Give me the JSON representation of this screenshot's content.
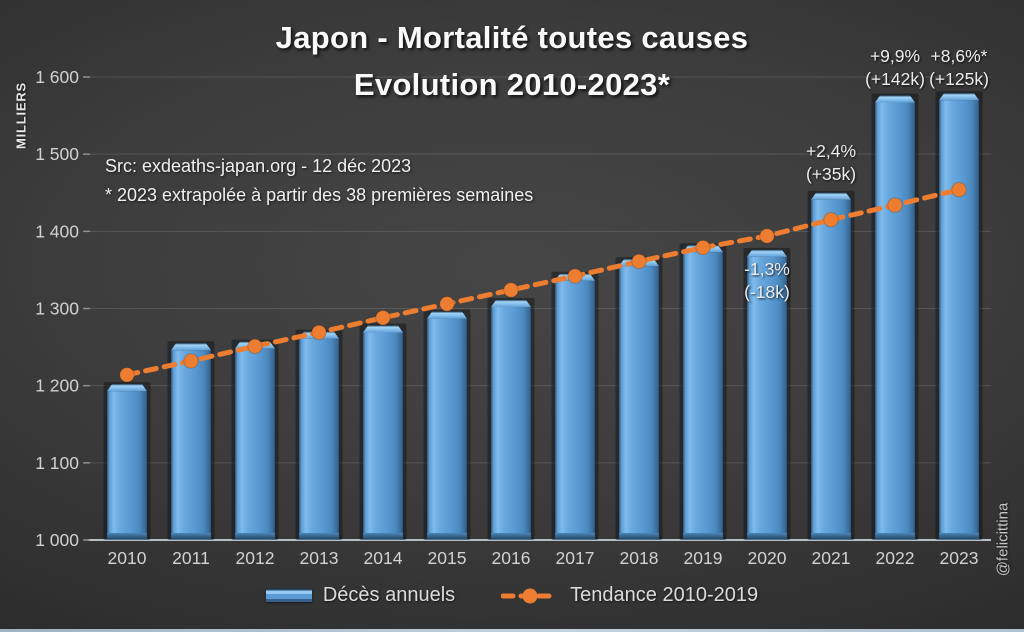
{
  "chart_data": {
    "type": "bar",
    "title_line1": "Japon - Mortalité toutes causes",
    "title_line2": "Evolution 2010-2023*",
    "unit_label": "MILLIERS",
    "source_line1": "Src: exdeaths-japan.org - 12 déc 2023",
    "source_line2": "* 2023 extrapolée à partir des 38 premières semaines",
    "watermark": "@felicittina",
    "categories": [
      "2010",
      "2011",
      "2012",
      "2013",
      "2014",
      "2015",
      "2016",
      "2017",
      "2018",
      "2019",
      "2020",
      "2021",
      "2022",
      "2023"
    ],
    "series": [
      {
        "name": "Décès annuels",
        "type": "bar",
        "color": "#5b9bd5",
        "values": [
          1202,
          1255,
          1257,
          1270,
          1278,
          1296,
          1311,
          1345,
          1364,
          1382,
          1376,
          1450,
          1576,
          1579
        ]
      },
      {
        "name": "Tendance 2010-2019",
        "type": "line-dashed",
        "color": "#ed7d31",
        "values": [
          1214,
          1232,
          1251,
          1269,
          1288,
          1306,
          1324,
          1342,
          1361,
          1379,
          1394,
          1415,
          1434,
          1454
        ]
      }
    ],
    "ylabel": "MILLIERS",
    "ylim": [
      1000,
      1600
    ],
    "ytick_step": 100,
    "ytick_labels": [
      "1 000",
      "1 100",
      "1 200",
      "1 300",
      "1 400",
      "1 500",
      "1 600"
    ],
    "grid": true,
    "legend_position": "bottom",
    "annotations": [
      {
        "year": "2020",
        "line1": "-1,3%",
        "line2": "(-18k)"
      },
      {
        "year": "2021",
        "line1": "+2,4%",
        "line2": "(+35k)"
      },
      {
        "year": "2022",
        "line1": "+9,9%",
        "line2": "(+142k)"
      },
      {
        "year": "2023",
        "line1": "+8,6%*",
        "line2": "(+125k)"
      }
    ],
    "colors": {
      "bar_main": "#5b9bd5",
      "bar_highlight": "#8ec8f2",
      "bar_dark": "#335d85",
      "trend_orange": "#ed7d31",
      "axis_text": "#d2d2d2",
      "background_dark": "#2d2d2d"
    }
  }
}
